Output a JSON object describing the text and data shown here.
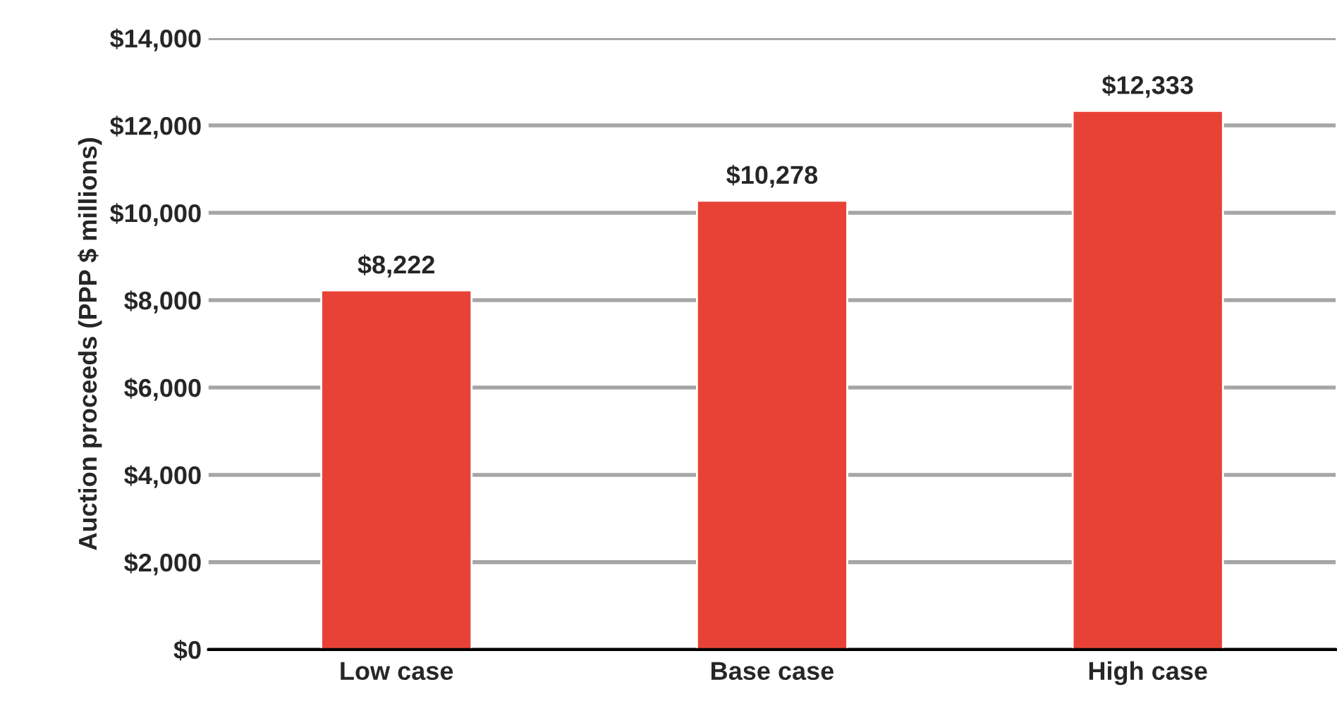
{
  "chart_data": {
    "type": "bar",
    "ylabel": "Auction proceeds (PPP $ millions)",
    "categories": [
      "Low case",
      "Base case",
      "High case"
    ],
    "values": [
      8222,
      10278,
      12333
    ],
    "color": "#e84236",
    "value_labels": [
      "$8,222",
      "$10,278",
      "$12,333"
    ],
    "ylim": [
      0,
      14000
    ],
    "yticks": [
      {
        "value": 0,
        "label": "$0"
      },
      {
        "value": 2000,
        "label": "$2,000"
      },
      {
        "value": 4000,
        "label": "$4,000"
      },
      {
        "value": 6000,
        "label": "$6,000"
      },
      {
        "value": 8000,
        "label": "$8,000"
      },
      {
        "value": 10000,
        "label": "$10,000"
      },
      {
        "value": 12000,
        "label": "$12,000"
      },
      {
        "value": 14000,
        "label": "$14,000"
      }
    ],
    "grid": "y",
    "legend": false
  }
}
